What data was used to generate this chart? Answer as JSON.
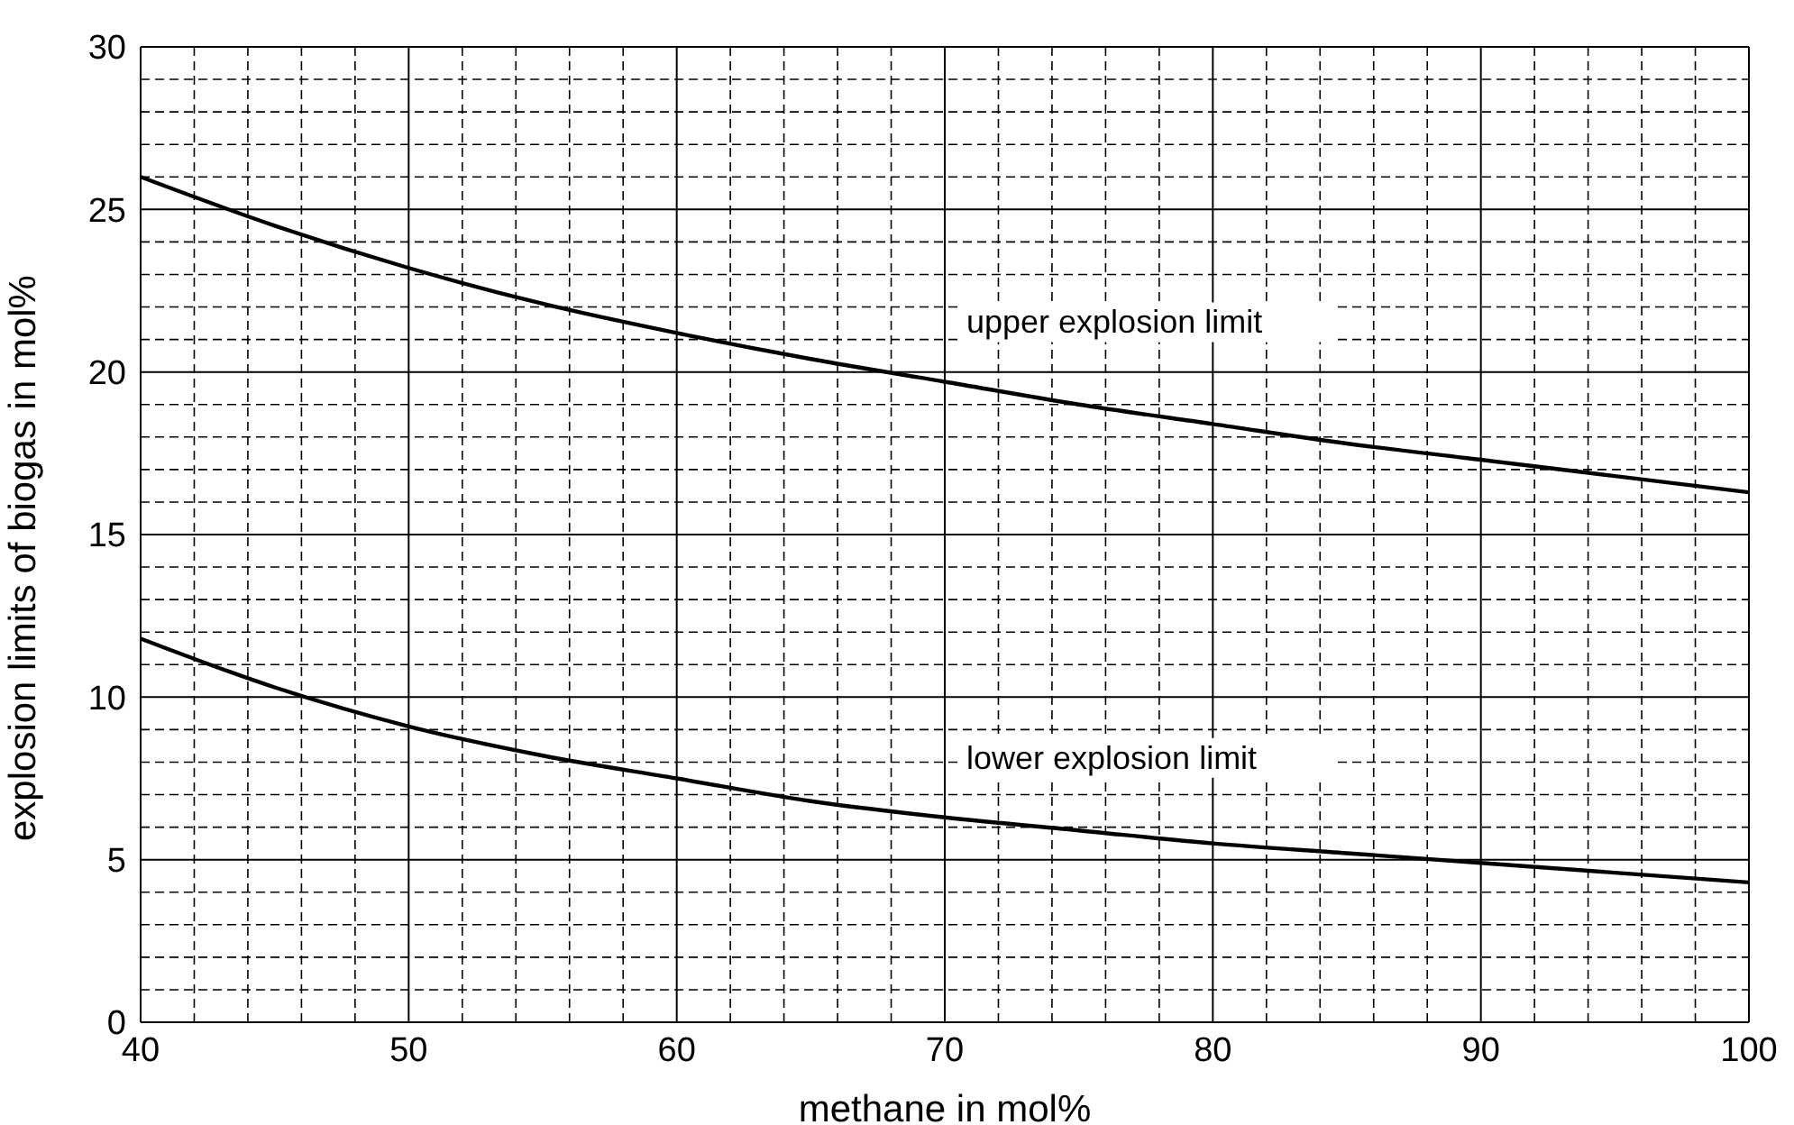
{
  "chart_data": {
    "type": "line",
    "xlabel": "methane in mol%",
    "ylabel": "explosion limits of biogas in mol%",
    "x": [
      40,
      45,
      50,
      55,
      60,
      65,
      70,
      75,
      80,
      85,
      90,
      95,
      100
    ],
    "series": [
      {
        "name": "upper explosion limit",
        "color": "#000000",
        "values": [
          26,
          24.5,
          23.2,
          22.1,
          21.2,
          20.4,
          19.7,
          19.0,
          18.4,
          17.8,
          17.3,
          16.8,
          16.3
        ]
      },
      {
        "name": "lower explosion limit",
        "color": "#000000",
        "values": [
          11.8,
          10.3,
          9.1,
          8.2,
          7.5,
          6.8,
          6.3,
          5.9,
          5.5,
          5.2,
          4.9,
          4.6,
          4.3
        ]
      }
    ],
    "xlim": [
      40,
      100
    ],
    "xticks": [
      40,
      {
        "value": 42,
        "label": null
      },
      {
        "value": 44,
        "label": null
      },
      {
        "value": 46,
        "label": null
      },
      {
        "value": 48,
        "label": null
      },
      50,
      {
        "value": 52,
        "label": null
      },
      {
        "value": 54,
        "label": null
      },
      {
        "value": 56,
        "label": null
      },
      {
        "value": 58,
        "label": null
      },
      60,
      {
        "value": 62,
        "label": null
      },
      {
        "value": 64,
        "label": null
      },
      {
        "value": 66,
        "label": null
      },
      {
        "value": 68,
        "label": null
      },
      70,
      {
        "value": 72,
        "label": null
      },
      {
        "value": 74,
        "label": null
      },
      {
        "value": 76,
        "label": null
      },
      {
        "value": 78,
        "label": null
      },
      80,
      {
        "value": 82,
        "label": null
      },
      {
        "value": 84,
        "label": null
      },
      {
        "value": 86,
        "label": null
      },
      {
        "value": 88,
        "label": null
      },
      90,
      {
        "value": 92,
        "label": null
      },
      {
        "value": 94,
        "label": null
      },
      {
        "value": 96,
        "label": null
      },
      {
        "value": 98,
        "label": null
      },
      100
    ],
    "ylim": [
      0,
      30
    ],
    "yticks": [
      0,
      {
        "value": 1,
        "label": null
      },
      {
        "value": 2,
        "label": null
      },
      {
        "value": 3,
        "label": null
      },
      {
        "value": 4,
        "label": null
      },
      5,
      {
        "value": 6,
        "label": null
      },
      {
        "value": 7,
        "label": null
      },
      {
        "value": 8,
        "label": null
      },
      {
        "value": 9,
        "label": null
      },
      10,
      {
        "value": 11,
        "label": null
      },
      {
        "value": 12,
        "label": null
      },
      {
        "value": 13,
        "label": null
      },
      {
        "value": 14,
        "label": null
      },
      15,
      {
        "value": 16,
        "label": null
      },
      {
        "value": 17,
        "label": null
      },
      {
        "value": 18,
        "label": null
      },
      {
        "value": 19,
        "label": null
      },
      20,
      {
        "value": 21,
        "label": null
      },
      {
        "value": 22,
        "label": null
      },
      {
        "value": 23,
        "label": null
      },
      {
        "value": 24,
        "label": null
      },
      25,
      {
        "value": 26,
        "label": null
      },
      {
        "value": 27,
        "label": null
      },
      {
        "value": 28,
        "label": null
      },
      {
        "value": 29,
        "label": null
      },
      30
    ],
    "grid": true,
    "legend": false,
    "marker": "none",
    "line_style": "solid"
  }
}
